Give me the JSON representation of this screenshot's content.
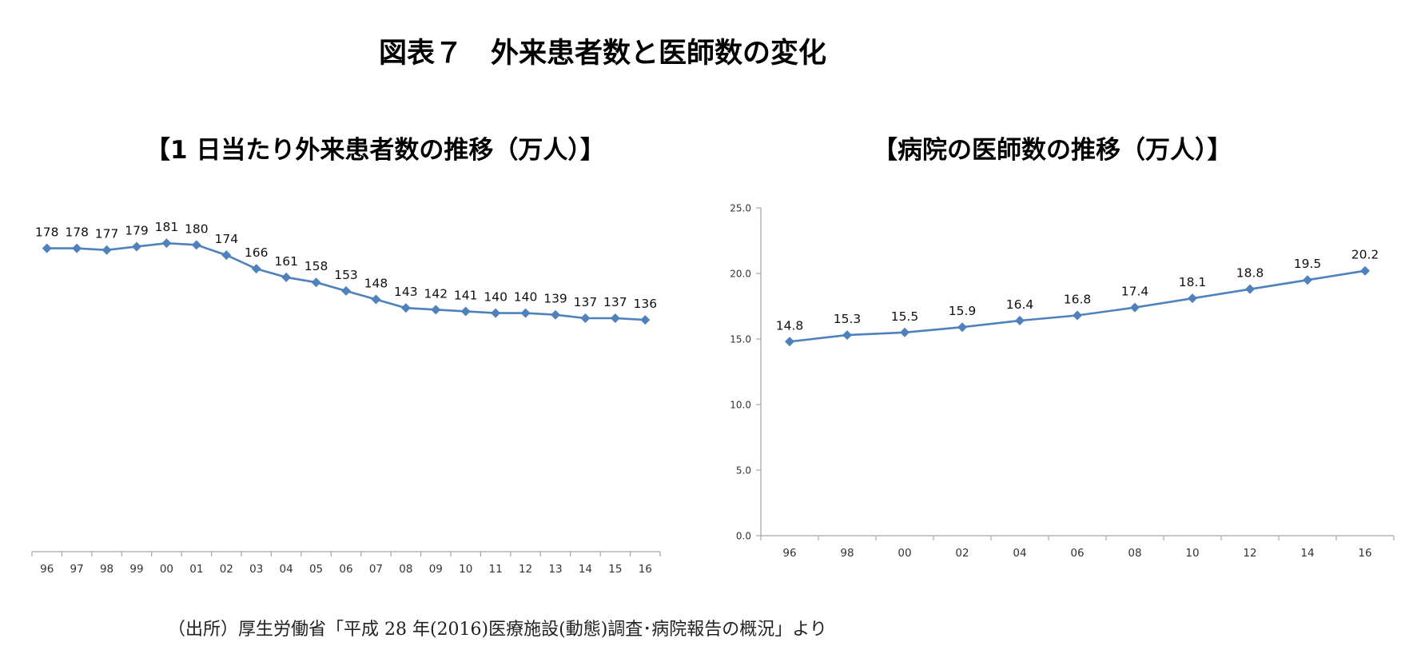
{
  "header": {
    "title": "図表７　外来患者数と医師数の変化"
  },
  "charts": {
    "left_title": "【1 日当たり外来患者数の推移（万人）】",
    "right_title": "【病院の医師数の推移（万人）】"
  },
  "chart_data": [
    {
      "type": "line",
      "title": "【1 日当たり外来患者数の推移（万人）】",
      "categories": [
        "96",
        "97",
        "98",
        "99",
        "00",
        "01",
        "02",
        "03",
        "04",
        "05",
        "06",
        "07",
        "08",
        "09",
        "10",
        "11",
        "12",
        "13",
        "14",
        "15",
        "16"
      ],
      "series": [
        {
          "values": [
            178,
            178,
            177,
            179,
            181,
            180,
            174,
            166,
            161,
            158,
            153,
            148,
            143,
            142,
            141,
            140,
            140,
            139,
            137,
            137,
            136
          ]
        }
      ],
      "ylim": [
        0,
        190
      ],
      "y_axis_visible": false,
      "grid": false,
      "color": "#4f81bd"
    },
    {
      "type": "line",
      "title": "【病院の医師数の推移（万人）】",
      "categories": [
        "96",
        "98",
        "00",
        "02",
        "04",
        "06",
        "08",
        "10",
        "12",
        "14",
        "16"
      ],
      "series": [
        {
          "values": [
            14.8,
            15.3,
            15.5,
            15.9,
            16.4,
            16.8,
            17.4,
            18.1,
            18.8,
            19.5,
            20.2
          ]
        }
      ],
      "ylim": [
        0,
        25
      ],
      "yticks": [
        "0.0",
        "5.0",
        "10.0",
        "15.0",
        "20.0",
        "25.0"
      ],
      "grid": false,
      "color": "#4f81bd"
    }
  ],
  "source": "（出所）厚生労働省「平成 28 年(2016)医療施設(動態)調査･病院報告の概況」より"
}
